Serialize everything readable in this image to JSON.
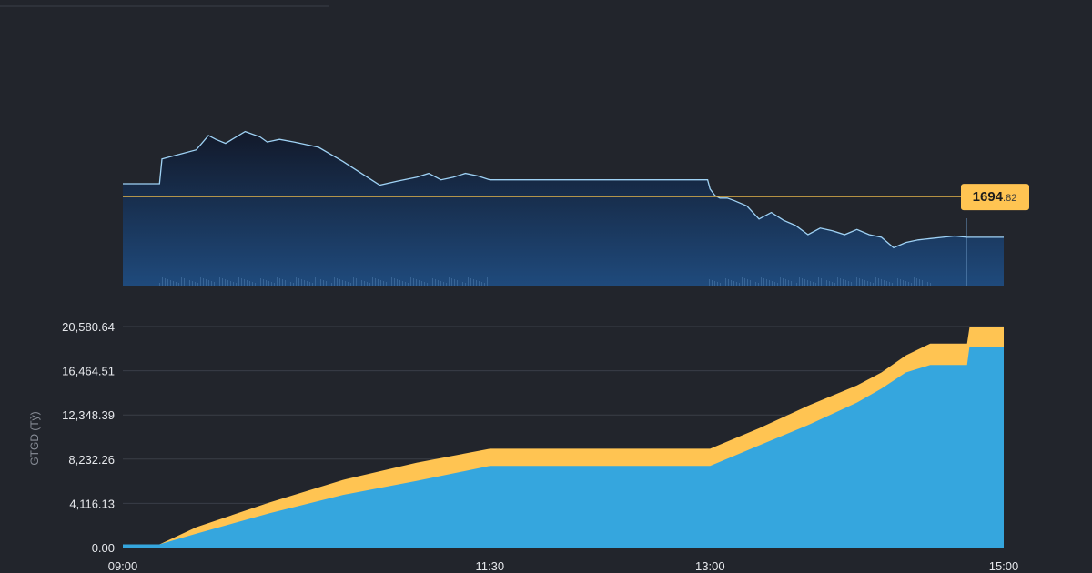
{
  "chart_data": [
    {
      "type": "area",
      "title": "",
      "current_value_label": {
        "integer": "1694",
        "decimal": ".82"
      },
      "reference_line": 1694.82,
      "ylim": [
        1688,
        1705
      ],
      "x_range": [
        "09:00",
        "15:00"
      ],
      "series": [
        {
          "x": [
            "09:00",
            "09:15",
            "09:16",
            "09:20",
            "09:30",
            "09:35",
            "09:38",
            "09:42",
            "09:50",
            "09:56",
            "09:59",
            "10:04",
            "10:10",
            "10:20",
            "10:30",
            "10:40",
            "10:45",
            "10:52",
            "11:00",
            "11:05",
            "11:10",
            "11:15",
            "11:20",
            "11:25",
            "11:30",
            "12:59",
            "13:00",
            "13:02",
            "13:04",
            "13:07",
            "13:10",
            "13:15",
            "13:20",
            "13:25",
            "13:30",
            "13:35",
            "13:40",
            "13:45",
            "13:50",
            "13:55",
            "14:00",
            "14:05",
            "14:10",
            "14:15",
            "14:20",
            "14:25",
            "14:30",
            "14:35",
            "14:40",
            "14:45",
            "14:50",
            "14:55",
            "15:00"
          ],
          "values": [
            1695.8,
            1695.8,
            1697.7,
            1697.9,
            1698.4,
            1699.5,
            1699.2,
            1698.9,
            1699.8,
            1699.4,
            1699,
            1699.2,
            1699,
            1698.6,
            1697.5,
            1696.3,
            1695.7,
            1696,
            1696.3,
            1696.6,
            1696.1,
            1696.3,
            1696.6,
            1696.4,
            1696.1,
            1696.1,
            1695.4,
            1694.9,
            1694.7,
            1694.7,
            1694.5,
            1694.1,
            1693.1,
            1693.6,
            1693,
            1692.6,
            1691.9,
            1692.4,
            1692.2,
            1691.9,
            1692.3,
            1691.9,
            1691.7,
            1690.9,
            1691.3,
            1691.5,
            1691.6,
            1691.7,
            1691.8,
            1691.7,
            1691.7,
            1691.7,
            1691.7
          ]
        }
      ]
    },
    {
      "type": "area",
      "ylabel": "GTGD (Tỷ)",
      "ylim": [
        0,
        20580.64
      ],
      "y_ticks": [
        "0.00",
        "4,116.13",
        "8,232.26",
        "12,348.39",
        "16,464.51",
        "20,580.64"
      ],
      "y_tick_values": [
        0,
        4116.13,
        8232.26,
        12348.39,
        16464.51,
        20580.64
      ],
      "x_ticks": [
        "09:00",
        "11:30",
        "13:00",
        "15:00"
      ],
      "colors": {
        "bottom": "#35a6de",
        "top": "#ffc452",
        "price_line": "#9fd2f5",
        "reference": "#e5b54b"
      },
      "series": [
        {
          "x": [
            "09:00",
            "09:15",
            "09:30",
            "10:00",
            "10:30",
            "11:00",
            "11:30",
            "12:00",
            "12:30",
            "13:00",
            "13:20",
            "13:40",
            "14:00",
            "14:10",
            "14:20",
            "14:30",
            "14:40",
            "14:45",
            "14:46",
            "15:00"
          ],
          "values": [
            300,
            300,
            1300,
            3200,
            4900,
            6200,
            7600,
            7600,
            7600,
            7600,
            9500,
            11400,
            13500,
            14800,
            16300,
            17000,
            17000,
            17000,
            18700,
            18700
          ]
        },
        {
          "x": [
            "09:00",
            "09:15",
            "09:30",
            "10:00",
            "10:30",
            "11:00",
            "11:30",
            "12:00",
            "12:30",
            "13:00",
            "13:20",
            "13:40",
            "14:00",
            "14:10",
            "14:20",
            "14:30",
            "14:40",
            "14:45",
            "14:46",
            "15:00"
          ],
          "values": [
            300,
            300,
            1900,
            4200,
            6300,
            7900,
            9200,
            9200,
            9200,
            9200,
            11100,
            13200,
            15100,
            16300,
            17900,
            19000,
            19000,
            19000,
            20500,
            20500
          ]
        }
      ]
    }
  ]
}
